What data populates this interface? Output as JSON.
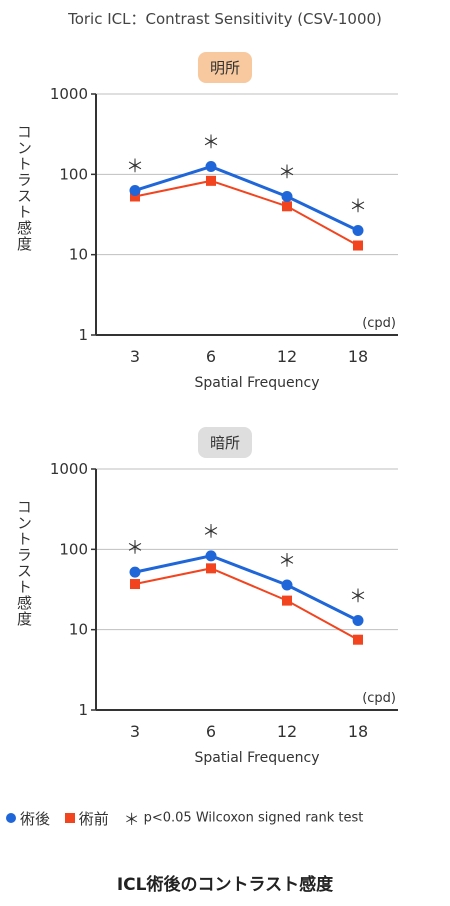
{
  "figure_title": "Toric ICL：Contrast Sensitivity (CSV-1000)",
  "legend": {
    "post_label": "術後",
    "pre_label": "術前",
    "star_symbol": "＊",
    "note": "p<0.05 Wilcoxon signed rank test"
  },
  "caption": "ICL術後のコントラスト感度",
  "colors": {
    "post": "#1f66d9",
    "pre": "#f2441f",
    "grid": "#bfbfbf",
    "bright_label_bg": "#f8c99e",
    "dark_label_bg": "#dedede"
  },
  "chart_data": [
    {
      "type": "line",
      "condition_label": "明所",
      "categories": [
        "3",
        "6",
        "12",
        "18"
      ],
      "xlabel": "Spatial Frequency",
      "unit_label": "(cpd)",
      "ylabel": "コントラスト感度",
      "yscale": "log",
      "ylim": [
        1,
        1000
      ],
      "yticks": [
        "1",
        "10",
        "100",
        "1000"
      ],
      "grid": true,
      "series": [
        {
          "name": "術後",
          "color": "#1f66d9",
          "marker": "circle",
          "values": [
            63,
            125,
            53,
            20
          ]
        },
        {
          "name": "術前",
          "color": "#f2441f",
          "marker": "square",
          "values": [
            53,
            83,
            40,
            13
          ]
        }
      ],
      "significance": [
        "＊",
        "＊",
        "＊",
        "＊"
      ]
    },
    {
      "type": "line",
      "condition_label": "暗所",
      "categories": [
        "3",
        "6",
        "12",
        "18"
      ],
      "xlabel": "Spatial Frequency",
      "unit_label": "(cpd)",
      "ylabel": "コントラスト感度",
      "yscale": "log",
      "ylim": [
        1,
        1000
      ],
      "yticks": [
        "1",
        "10",
        "100",
        "1000"
      ],
      "grid": true,
      "series": [
        {
          "name": "術後",
          "color": "#1f66d9",
          "marker": "circle",
          "values": [
            52,
            83,
            36,
            13
          ]
        },
        {
          "name": "術前",
          "color": "#f2441f",
          "marker": "square",
          "values": [
            37,
            58,
            23,
            7.5
          ]
        }
      ],
      "significance": [
        "＊",
        "＊",
        "＊",
        "＊"
      ]
    }
  ]
}
